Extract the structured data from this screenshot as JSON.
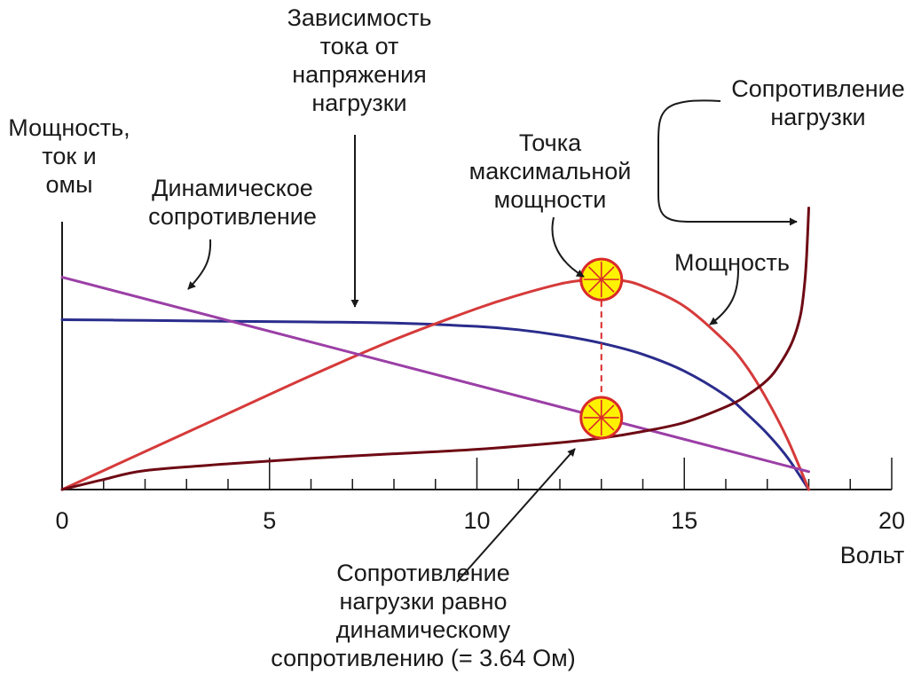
{
  "chart_data": {
    "type": "line",
    "x_unit": "Вольт",
    "y_axis_title": [
      "Мощность,",
      "ток и",
      "омы"
    ],
    "x_ticks": [
      "0",
      "5",
      "10",
      "15",
      "20"
    ],
    "xlim": [
      0,
      20
    ],
    "grid": false,
    "series": [
      {
        "name": "Зависимость тока от напряжения нагрузки",
        "color": "#2a2c8c",
        "x": [
          0,
          2,
          4,
          6,
          8,
          10,
          11,
          12,
          13,
          14,
          15,
          16,
          16.5,
          17,
          17.5,
          18
        ],
        "y": [
          0.76,
          0.757,
          0.753,
          0.75,
          0.745,
          0.73,
          0.715,
          0.69,
          0.655,
          0.605,
          0.53,
          0.42,
          0.34,
          0.25,
          0.14,
          0
        ]
      },
      {
        "name": "Мощность",
        "color": "#d63a3a",
        "x": [
          0,
          2,
          4,
          6,
          8,
          10,
          11,
          12,
          12.5,
          13,
          13.5,
          14,
          15,
          16,
          16.5,
          17,
          17.5,
          18
        ],
        "y": [
          0,
          0.17,
          0.34,
          0.51,
          0.67,
          0.81,
          0.87,
          0.92,
          0.935,
          0.94,
          0.935,
          0.91,
          0.82,
          0.66,
          0.55,
          0.4,
          0.22,
          0
        ]
      },
      {
        "name": "Динамическое сопротивление",
        "color": "#9b3fa6",
        "x": [
          0,
          18
        ],
        "y": [
          0.95,
          0.08
        ]
      },
      {
        "name": "Сопротивление нагрузки",
        "color": "#6e0a14",
        "x": [
          0,
          1,
          2,
          4,
          6,
          8,
          10,
          12,
          13,
          14,
          15,
          16,
          16.5,
          17,
          17.3,
          17.6,
          17.8,
          17.9,
          17.95,
          18
        ],
        "y": [
          0,
          0.045,
          0.085,
          0.115,
          0.14,
          0.16,
          0.18,
          0.21,
          0.23,
          0.26,
          0.3,
          0.37,
          0.42,
          0.49,
          0.56,
          0.66,
          0.78,
          0.92,
          1.05,
          1.26
        ]
      }
    ],
    "annotations": {
      "current_curve": [
        "Зависимость",
        "тока от",
        "напряжения",
        "нагрузки"
      ],
      "dynamic_resistance": [
        "Динамическое",
        "сопротивление"
      ],
      "max_power_point": [
        "Точка",
        "максимальной",
        "мощности"
      ],
      "power": [
        "Мощность"
      ],
      "load_resistance": [
        "Сопротивление",
        "нагрузки"
      ],
      "equal_resistance": [
        "Сопротивление",
        "нагрузки равно",
        "динамическому",
        "сопротивлению (= 3.64 Ом)"
      ]
    },
    "marker_x": 13
  }
}
